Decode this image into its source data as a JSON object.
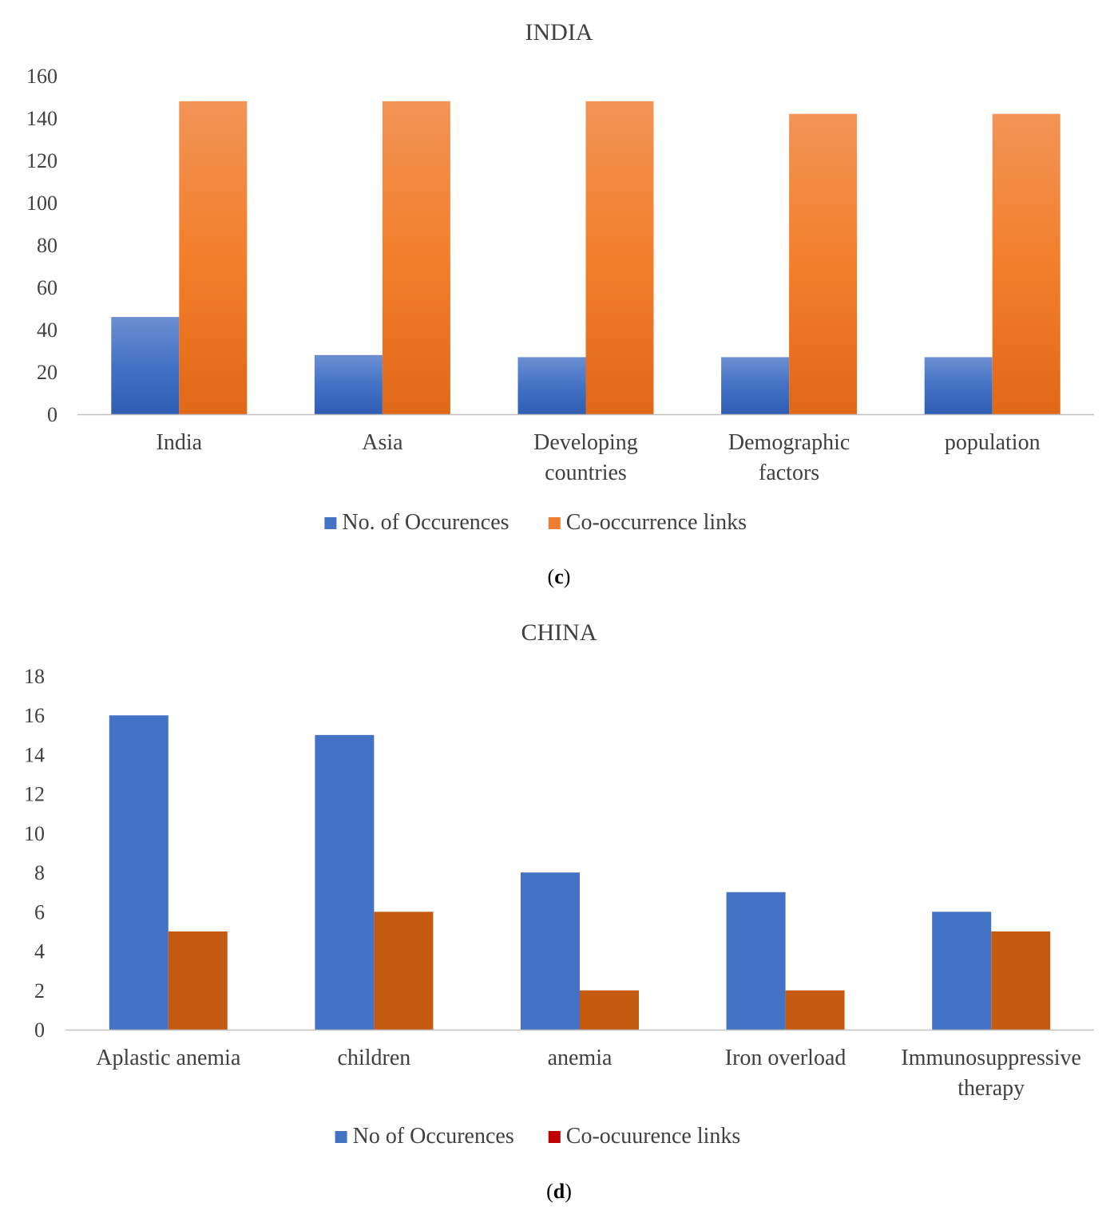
{
  "chart_data": [
    {
      "type": "bar",
      "title": "INDIA",
      "caption_letter": "c",
      "categories": [
        [
          "India"
        ],
        [
          "Asia"
        ],
        [
          "Developing",
          "countries"
        ],
        [
          "Demographic",
          "factors"
        ],
        [
          "population"
        ]
      ],
      "series": [
        {
          "name": "No. of Occurences",
          "values": [
            46,
            28,
            27,
            27,
            27
          ],
          "color": "#4472C4"
        },
        {
          "name": "Co-occurrence links",
          "values": [
            148,
            148,
            148,
            142,
            142
          ],
          "color": "#ED7D31"
        }
      ],
      "ylim": [
        0,
        160
      ],
      "yticks": [
        0,
        20,
        40,
        60,
        80,
        100,
        120,
        140,
        160
      ],
      "gradient": true,
      "xlabel": "",
      "ylabel": ""
    },
    {
      "type": "bar",
      "title": "CHINA",
      "caption_letter": "d",
      "categories": [
        [
          "Aplastic anemia"
        ],
        [
          "children"
        ],
        [
          "anemia"
        ],
        [
          "Iron overload"
        ],
        [
          "Immunosuppressive",
          "therapy"
        ]
      ],
      "series": [
        {
          "name": "No of Occurences",
          "values": [
            16,
            15,
            8,
            7,
            6
          ],
          "color": "#4472C4",
          "legend_color": "#4472C4"
        },
        {
          "name": "Co-ocuurence links",
          "values": [
            5,
            6,
            2,
            2,
            5
          ],
          "color": "#C55A11",
          "legend_color": "#C00000"
        }
      ],
      "ylim": [
        0,
        18
      ],
      "yticks": [
        0,
        2,
        4,
        6,
        8,
        10,
        12,
        14,
        16,
        18
      ],
      "gradient": false,
      "xlabel": "",
      "ylabel": ""
    }
  ]
}
